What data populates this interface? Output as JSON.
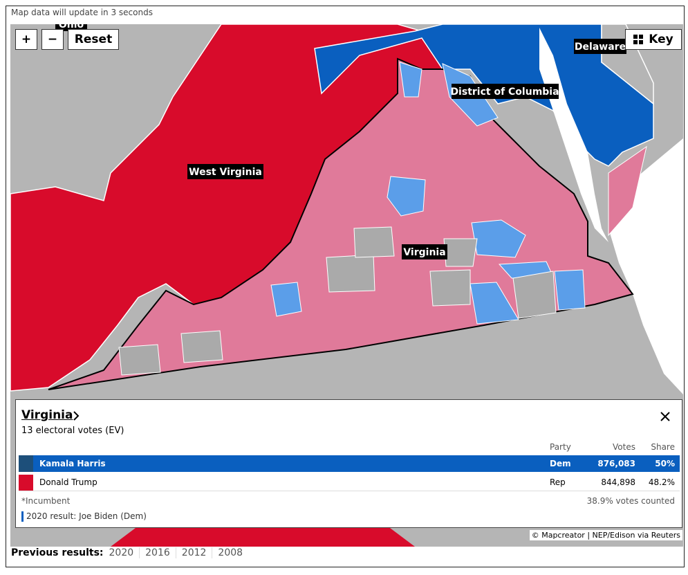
{
  "status": "Map data will update in 3 seconds",
  "controls": {
    "zoom_in": "+",
    "zoom_out": "−",
    "reset": "Reset",
    "key": "Key"
  },
  "map_labels": {
    "ohio": "Ohio",
    "west_virginia": "West Virginia",
    "virginia": "Virginia",
    "dc": "District of Columbia",
    "delaware": "Delaware"
  },
  "panel": {
    "title": "Virginia",
    "subtitle": "13 electoral votes (EV)",
    "columns": [
      "Party",
      "Votes",
      "Share"
    ],
    "rows": [
      {
        "candidate": "Kamala Harris",
        "party": "Dem",
        "votes": "876,083",
        "share": "50%"
      },
      {
        "candidate": "Donald Trump",
        "party": "Rep",
        "votes": "844,898",
        "share": "48.2%"
      }
    ],
    "footnote": "*Incumbent",
    "counted": "38.9% votes counted",
    "previous": "2020 result: Joe Biden (Dem)"
  },
  "credit": "© Mapcreator | NEP/Edison via Reuters",
  "previous_results": {
    "label": "Previous results:",
    "years": [
      "2020",
      "2016",
      "2012",
      "2008"
    ]
  }
}
